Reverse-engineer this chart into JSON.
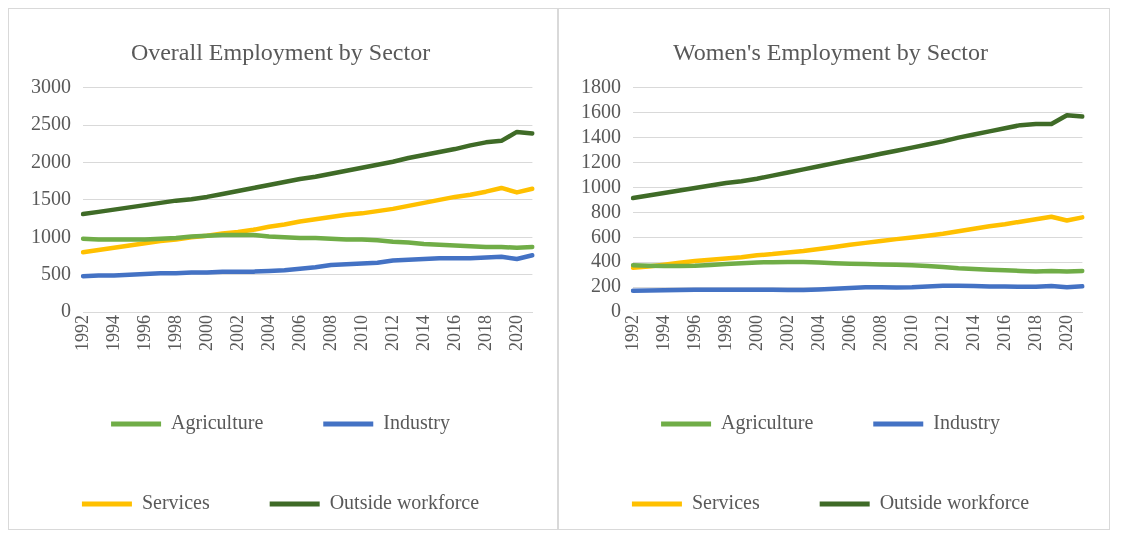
{
  "chart_data": [
    {
      "type": "line",
      "title": "Overall Employment by Sector",
      "categories": [
        "1992",
        null,
        "1994",
        null,
        "1996",
        null,
        "1998",
        null,
        "2000",
        null,
        "2002",
        null,
        "2004",
        null,
        "2006",
        null,
        "2008",
        null,
        "2010",
        null,
        "2012",
        null,
        "2014",
        null,
        "2016",
        null,
        "2018",
        null,
        "2020",
        null
      ],
      "ylim": [
        0,
        3000
      ],
      "yticks": [
        0,
        500,
        1000,
        1500,
        2000,
        2500,
        3000
      ],
      "grid": "y",
      "legend": "bottom",
      "marker": "none",
      "line_style": "solid",
      "series": [
        {
          "name": "Agriculture",
          "color": "#70ad47",
          "values": [
            980,
            970,
            970,
            970,
            970,
            980,
            990,
            1010,
            1020,
            1030,
            1030,
            1030,
            1010,
            1000,
            990,
            990,
            980,
            970,
            970,
            960,
            940,
            930,
            910,
            900,
            890,
            880,
            870,
            870,
            860,
            870
          ]
        },
        {
          "name": "Industry",
          "color": "#4472c4",
          "values": [
            480,
            490,
            490,
            500,
            510,
            520,
            520,
            530,
            530,
            540,
            540,
            540,
            550,
            560,
            580,
            600,
            630,
            640,
            650,
            660,
            690,
            700,
            710,
            720,
            720,
            720,
            730,
            740,
            710,
            760
          ]
        },
        {
          "name": "Services",
          "color": "#ffc000",
          "values": [
            800,
            830,
            860,
            890,
            920,
            950,
            970,
            1000,
            1020,
            1050,
            1070,
            1100,
            1140,
            1170,
            1210,
            1240,
            1270,
            1300,
            1320,
            1350,
            1380,
            1420,
            1460,
            1500,
            1540,
            1570,
            1610,
            1660,
            1600,
            1650
          ]
        },
        {
          "name": "Outside workforce",
          "color": "#3f6b27",
          "values": [
            1310,
            1340,
            1370,
            1400,
            1430,
            1460,
            1490,
            1510,
            1540,
            1580,
            1620,
            1660,
            1700,
            1740,
            1780,
            1810,
            1850,
            1890,
            1930,
            1970,
            2010,
            2060,
            2100,
            2140,
            2180,
            2230,
            2270,
            2290,
            2410,
            2390
          ]
        }
      ]
    },
    {
      "type": "line",
      "title": "Women's Employment by Sector",
      "categories": [
        "1992",
        null,
        "1994",
        null,
        "1996",
        null,
        "1998",
        null,
        "2000",
        null,
        "2002",
        null,
        "2004",
        null,
        "2006",
        null,
        "2008",
        null,
        "2010",
        null,
        "2012",
        null,
        "2014",
        null,
        "2016",
        null,
        "2018",
        null,
        "2020",
        null
      ],
      "ylim": [
        0,
        1800
      ],
      "yticks": [
        0,
        200,
        400,
        600,
        800,
        1000,
        1200,
        1400,
        1600,
        1800
      ],
      "grid": "y",
      "legend": "bottom",
      "marker": "none",
      "line_style": "solid",
      "series": [
        {
          "name": "Agriculture",
          "color": "#70ad47",
          "values": [
            375,
            372,
            370,
            370,
            372,
            378,
            385,
            392,
            398,
            400,
            402,
            402,
            398,
            392,
            388,
            385,
            382,
            380,
            376,
            370,
            362,
            352,
            345,
            340,
            335,
            330,
            325,
            330,
            325,
            330
          ]
        },
        {
          "name": "Industry",
          "color": "#4472c4",
          "values": [
            170,
            172,
            174,
            176,
            178,
            178,
            178,
            178,
            178,
            178,
            176,
            176,
            180,
            186,
            192,
            198,
            198,
            196,
            198,
            205,
            210,
            210,
            208,
            205,
            205,
            202,
            202,
            208,
            198,
            206
          ]
        },
        {
          "name": "Services",
          "color": "#ffc000",
          "values": [
            355,
            365,
            380,
            395,
            410,
            420,
            430,
            440,
            455,
            465,
            478,
            490,
            505,
            522,
            540,
            555,
            570,
            585,
            598,
            612,
            628,
            648,
            668,
            688,
            705,
            725,
            745,
            765,
            735,
            760
          ]
        },
        {
          "name": "Outside workforce",
          "color": "#3f6b27",
          "values": [
            915,
            935,
            955,
            975,
            995,
            1015,
            1035,
            1050,
            1070,
            1095,
            1120,
            1145,
            1170,
            1195,
            1220,
            1245,
            1270,
            1295,
            1320,
            1345,
            1370,
            1400,
            1425,
            1450,
            1475,
            1500,
            1510,
            1510,
            1580,
            1570
          ]
        }
      ]
    }
  ]
}
